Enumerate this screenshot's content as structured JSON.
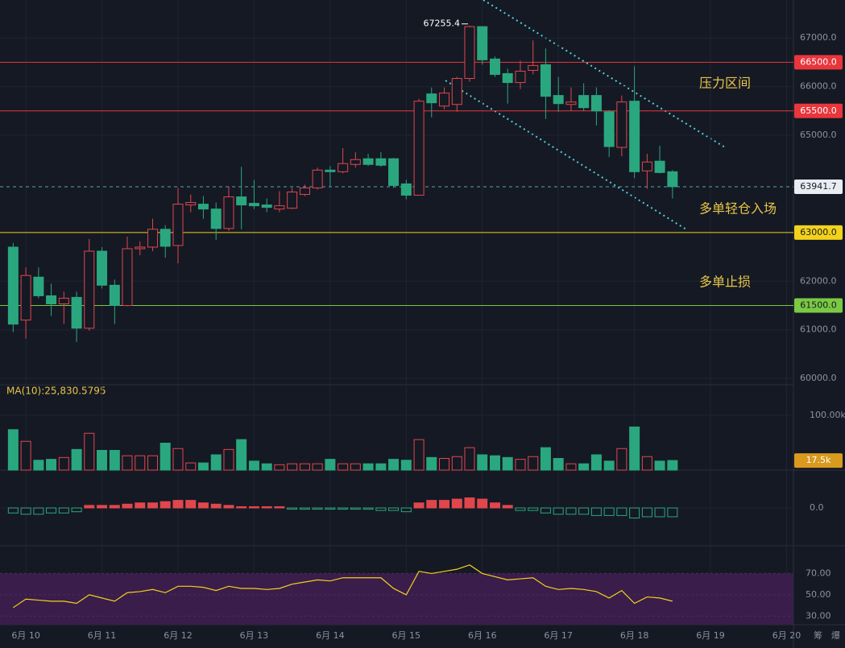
{
  "chart_data": [
    {
      "type": "candlestick",
      "x": [
        9.833,
        10,
        10.167,
        10.333,
        10.5,
        10.667,
        10.833,
        11,
        11.167,
        11.333,
        11.5,
        11.667,
        11.833,
        12,
        12.167,
        12.333,
        12.5,
        12.667,
        12.833,
        13,
        13.167,
        13.333,
        13.5,
        13.667,
        13.833,
        14,
        14.167,
        14.333,
        14.5,
        14.667,
        14.833,
        15,
        15.167,
        15.333,
        15.5,
        15.667,
        15.833,
        16,
        16.167,
        16.333,
        16.5,
        16.667,
        16.833,
        17,
        17.167,
        17.333,
        17.5,
        17.667,
        17.833,
        18,
        18.167,
        18.333,
        18.5
      ],
      "open": [
        62700,
        61200,
        62083,
        61700,
        61533,
        61667,
        61033,
        62617,
        61917,
        61500,
        62667,
        62700,
        63067,
        62733,
        63567,
        63583,
        63483,
        63083,
        63733,
        63600,
        63567,
        63483,
        63500,
        63783,
        63917,
        64283,
        64250,
        64400,
        64517,
        64517,
        64517,
        64000,
        63767,
        65850,
        65600,
        65633,
        66167,
        67233,
        66567,
        66267,
        66083,
        66333,
        66450,
        65817,
        65633,
        65817,
        65817,
        65483,
        64750,
        65700,
        64267,
        64467,
        64250
      ],
      "high": [
        62783,
        62283,
        62283,
        61950,
        61783,
        61783,
        62867,
        62700,
        62033,
        62917,
        62817,
        63283,
        63150,
        63917,
        63783,
        63750,
        63617,
        63950,
        64350,
        64083,
        63700,
        63850,
        63917,
        63983,
        64333,
        64367,
        64733,
        64650,
        64617,
        64650,
        64533,
        64083,
        65750,
        65983,
        65983,
        66200,
        67255.4,
        67233,
        66617,
        66367,
        66533,
        66950,
        66783,
        66200,
        65983,
        66067,
        65983,
        65517,
        65817,
        66417,
        64617,
        64783,
        64283
      ],
      "low": [
        60950,
        60817,
        61650,
        61283,
        61117,
        60750,
        60983,
        61850,
        61117,
        61483,
        62533,
        62617,
        62483,
        62367,
        63417,
        63283,
        62850,
        63033,
        63067,
        63483,
        63417,
        63417,
        63483,
        63750,
        63883,
        63950,
        64217,
        64333,
        64367,
        64350,
        63917,
        63683,
        63767,
        65367,
        65533,
        65483,
        66100,
        66450,
        66200,
        65650,
        65950,
        66250,
        65333,
        65483,
        65500,
        65500,
        65200,
        64550,
        64567,
        64117,
        63900,
        64217,
        63700
      ],
      "close": [
        61117,
        62117,
        61700,
        61533,
        61650,
        61033,
        62617,
        61917,
        61500,
        62667,
        62700,
        63067,
        62717,
        63583,
        63617,
        63483,
        63083,
        63733,
        63567,
        63550,
        63517,
        63550,
        63833,
        63917,
        64283,
        64250,
        64417,
        64500,
        64400,
        64383,
        63967,
        63767,
        65700,
        65667,
        65867,
        66167,
        67233,
        66550,
        66250,
        66083,
        66317,
        66433,
        65800,
        65650,
        65683,
        65567,
        65500,
        64767,
        65683,
        64250,
        64450,
        64233,
        63941.7
      ],
      "up_color": "#e0474c",
      "down_color": "#2aa77f",
      "ylim": [
        59870,
        67780
      ],
      "yticks": [
        {
          "value": 60000,
          "label": "60000.0"
        },
        {
          "value": 61000,
          "label": "61000.0"
        },
        {
          "value": 62000,
          "label": "62000.0"
        },
        {
          "value": 65000,
          "label": "65000.0"
        },
        {
          "value": 66000,
          "label": "66000.0"
        },
        {
          "value": 67000,
          "label": "67000.0"
        }
      ],
      "xlim": [
        9.66,
        20.09
      ],
      "xticks": [
        {
          "value": 10,
          "label": "6月 10"
        },
        {
          "value": 11,
          "label": "6月 11"
        },
        {
          "value": 12,
          "label": "6月 12"
        },
        {
          "value": 13,
          "label": "6月 13"
        },
        {
          "value": 14,
          "label": "6月 14"
        },
        {
          "value": 15,
          "label": "6月 15"
        },
        {
          "value": 16,
          "label": "6月 16"
        },
        {
          "value": 17,
          "label": "6月 17"
        },
        {
          "value": 18,
          "label": "6月 18"
        },
        {
          "value": 19,
          "label": "6月 19"
        },
        {
          "value": 20,
          "label": "6月 20"
        }
      ],
      "levels": [
        {
          "value": 66500,
          "label": "66500.0",
          "color": "#e8363c"
        },
        {
          "value": 65500,
          "label": "65500.0",
          "color": "#e8363c"
        },
        {
          "value": 63941.7,
          "label": "63941.7",
          "color": "#5aa3b0"
        },
        {
          "value": 63000,
          "label": "63000.0",
          "color": "#f2d21b"
        },
        {
          "value": 61500,
          "label": "61500.0",
          "color": "#7ac943"
        }
      ],
      "annotations": [
        "压力区间",
        "多单轻仓入场",
        "多单止损"
      ]
    },
    {
      "type": "bar",
      "label": "MA(10):25,830.5795",
      "values": [
        73800,
        52500,
        18000,
        19700,
        23000,
        37700,
        67200,
        36000,
        36000,
        26200,
        26200,
        26200,
        49200,
        39300,
        13100,
        13100,
        27900,
        37700,
        55700,
        16400,
        11500,
        9800,
        11500,
        11500,
        11500,
        19700,
        11500,
        11500,
        11500,
        11500,
        19700,
        18000,
        55700,
        23000,
        21300,
        24600,
        41000,
        27900,
        26200,
        23000,
        19700,
        24600,
        41000,
        21300,
        11500,
        11500,
        27900,
        16400,
        39300,
        78700,
        24600,
        16400,
        17500
      ],
      "ylim": [
        0,
        155700
      ],
      "yticks": [
        {
          "value": 100000,
          "label": "100.00k"
        }
      ],
      "current": {
        "value": 17500,
        "label": "17.5k"
      }
    },
    {
      "type": "bar",
      "values": [
        -40,
        -50,
        -50,
        -40,
        -40,
        -30,
        20,
        20,
        20,
        30,
        40,
        40,
        50,
        60,
        60,
        40,
        30,
        20,
        10,
        10,
        10,
        10,
        -10,
        -10,
        -10,
        -10,
        -10,
        -10,
        -10,
        -20,
        -20,
        -30,
        40,
        60,
        60,
        70,
        80,
        70,
        40,
        20,
        -20,
        -20,
        -40,
        -50,
        -50,
        -50,
        -60,
        -60,
        -60,
        -80,
        -70,
        -70,
        -70
      ],
      "ylim": [
        -300,
        300
      ],
      "yticks": [
        {
          "value": 0,
          "label": "0.0"
        }
      ]
    },
    {
      "type": "line",
      "color": "#f2d21b",
      "values": [
        38,
        46,
        45,
        44,
        44,
        42,
        50,
        47,
        44,
        52,
        53,
        55,
        52,
        58,
        58,
        57,
        54,
        58,
        56,
        56,
        55,
        56,
        60,
        62,
        64,
        63,
        66,
        66,
        66,
        66,
        56,
        50,
        72,
        70,
        72,
        74,
        78,
        70,
        67,
        64,
        65,
        66,
        58,
        55,
        56,
        55,
        53,
        47,
        54,
        42,
        48,
        47,
        44
      ],
      "ylim": [
        22,
        96
      ],
      "yticks": [
        {
          "value": 70,
          "label": "70.00"
        },
        {
          "value": 50,
          "label": "50.00"
        },
        {
          "value": 30,
          "label": "30.00"
        }
      ]
    }
  ],
  "toolbar": [
    "筹",
    "爆"
  ]
}
